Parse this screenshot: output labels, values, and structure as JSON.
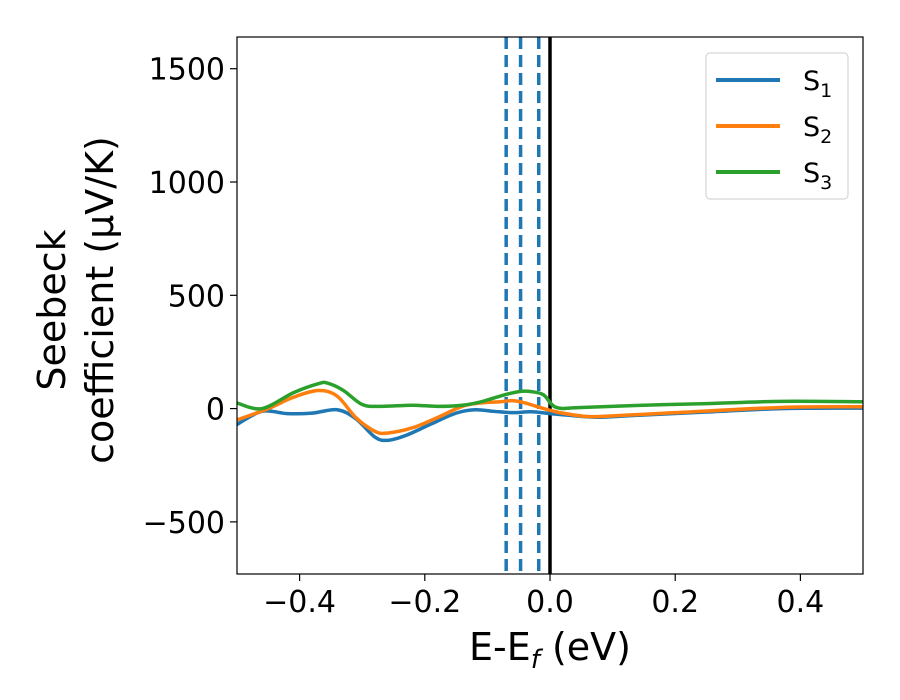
{
  "chart_data": {
    "type": "line",
    "xlabel_main": "E-E",
    "xlabel_sub": "f",
    "xlabel_unit": " (eV)",
    "ylabel_line1": "Seebeck",
    "ylabel_line2": "coefficient  (μV/K)",
    "xlim": [
      -0.5,
      0.5
    ],
    "ylim": [
      -730,
      1640
    ],
    "xticks": [
      -0.4,
      -0.2,
      0.0,
      0.2,
      0.4
    ],
    "xtick_labels": [
      "−0.4",
      "−0.2",
      "0.0",
      "0.2",
      "0.4"
    ],
    "yticks": [
      -500,
      0,
      500,
      1000,
      1500
    ],
    "ytick_labels": [
      "−500",
      "0",
      "500",
      "1000",
      "1500"
    ],
    "grid": false,
    "legend_position": "top-right",
    "vlines_dashed": [
      -0.07,
      -0.047,
      -0.018
    ],
    "vline_solid": 0.0,
    "colors": {
      "dashed": "#1f77b4",
      "solid": "#000000"
    },
    "series": [
      {
        "name_main": "S",
        "name_sub": "1",
        "color": "#1f77b4",
        "x": [
          -0.5,
          -0.46,
          -0.42,
          -0.38,
          -0.34,
          -0.31,
          -0.28,
          -0.26,
          -0.23,
          -0.19,
          -0.15,
          -0.12,
          -0.09,
          -0.06,
          -0.03,
          0.0,
          0.04,
          0.08,
          0.15,
          0.25,
          0.37,
          0.5
        ],
        "y": [
          -70,
          -12,
          -22,
          -20,
          -5,
          -45,
          -125,
          -140,
          -118,
          -68,
          -20,
          -5,
          -12,
          -18,
          -14,
          -22,
          -32,
          -38,
          -28,
          -15,
          0,
          2
        ]
      },
      {
        "name_main": "S",
        "name_sub": "2",
        "color": "#ff7f0e",
        "x": [
          -0.5,
          -0.45,
          -0.41,
          -0.37,
          -0.34,
          -0.31,
          -0.28,
          -0.26,
          -0.22,
          -0.18,
          -0.14,
          -0.11,
          -0.08,
          -0.06,
          -0.04,
          -0.01,
          0.02,
          0.06,
          0.1,
          0.2,
          0.37,
          0.5
        ],
        "y": [
          -50,
          0,
          50,
          80,
          55,
          -40,
          -100,
          -108,
          -85,
          -40,
          10,
          25,
          30,
          35,
          25,
          0,
          -20,
          -35,
          -32,
          -18,
          5,
          8
        ]
      },
      {
        "name_main": "S",
        "name_sub": "3",
        "color": "#2ca02c",
        "x": [
          -0.5,
          -0.46,
          -0.41,
          -0.37,
          -0.355,
          -0.33,
          -0.3,
          -0.27,
          -0.22,
          -0.18,
          -0.14,
          -0.11,
          -0.08,
          -0.05,
          -0.03,
          -0.01,
          0.01,
          0.05,
          0.15,
          0.25,
          0.37,
          0.5
        ],
        "y": [
          25,
          0,
          70,
          110,
          112,
          80,
          18,
          10,
          15,
          10,
          15,
          30,
          55,
          75,
          75,
          60,
          5,
          5,
          15,
          22,
          32,
          30
        ]
      }
    ]
  }
}
